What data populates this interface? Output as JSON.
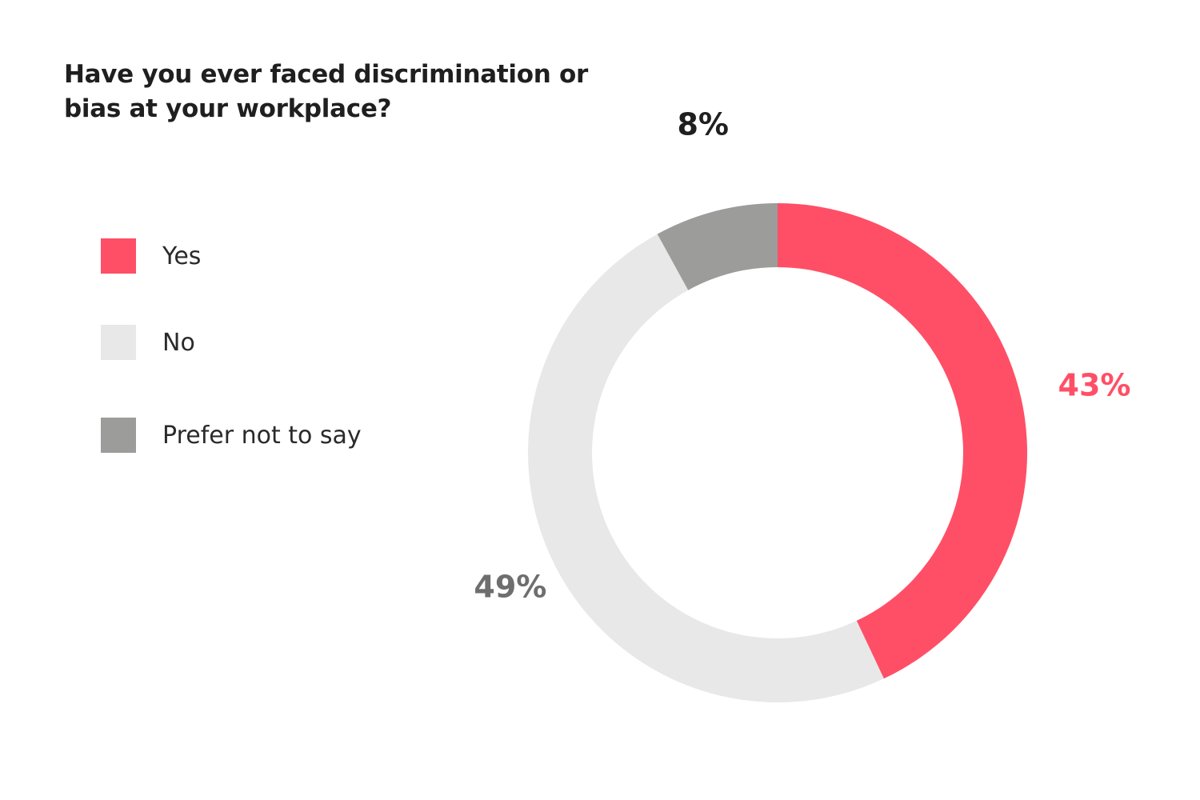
{
  "chart_data": {
    "type": "pie",
    "title": "Have you ever faced discrimination or bias at your workplace?",
    "slices": [
      {
        "name": "Yes",
        "value": 43,
        "label": "43%",
        "color": "#ff4f66",
        "label_color": "#ff4f66"
      },
      {
        "name": "No",
        "value": 49,
        "label": "49%",
        "color": "#e8e8e8",
        "label_color": "#6e6e6e"
      },
      {
        "name": "Prefer not to say",
        "value": 8,
        "label": "8%",
        "color": "#9c9c9a",
        "label_color": "#1f1f1f"
      }
    ],
    "donut": true,
    "legend_position": "left"
  }
}
